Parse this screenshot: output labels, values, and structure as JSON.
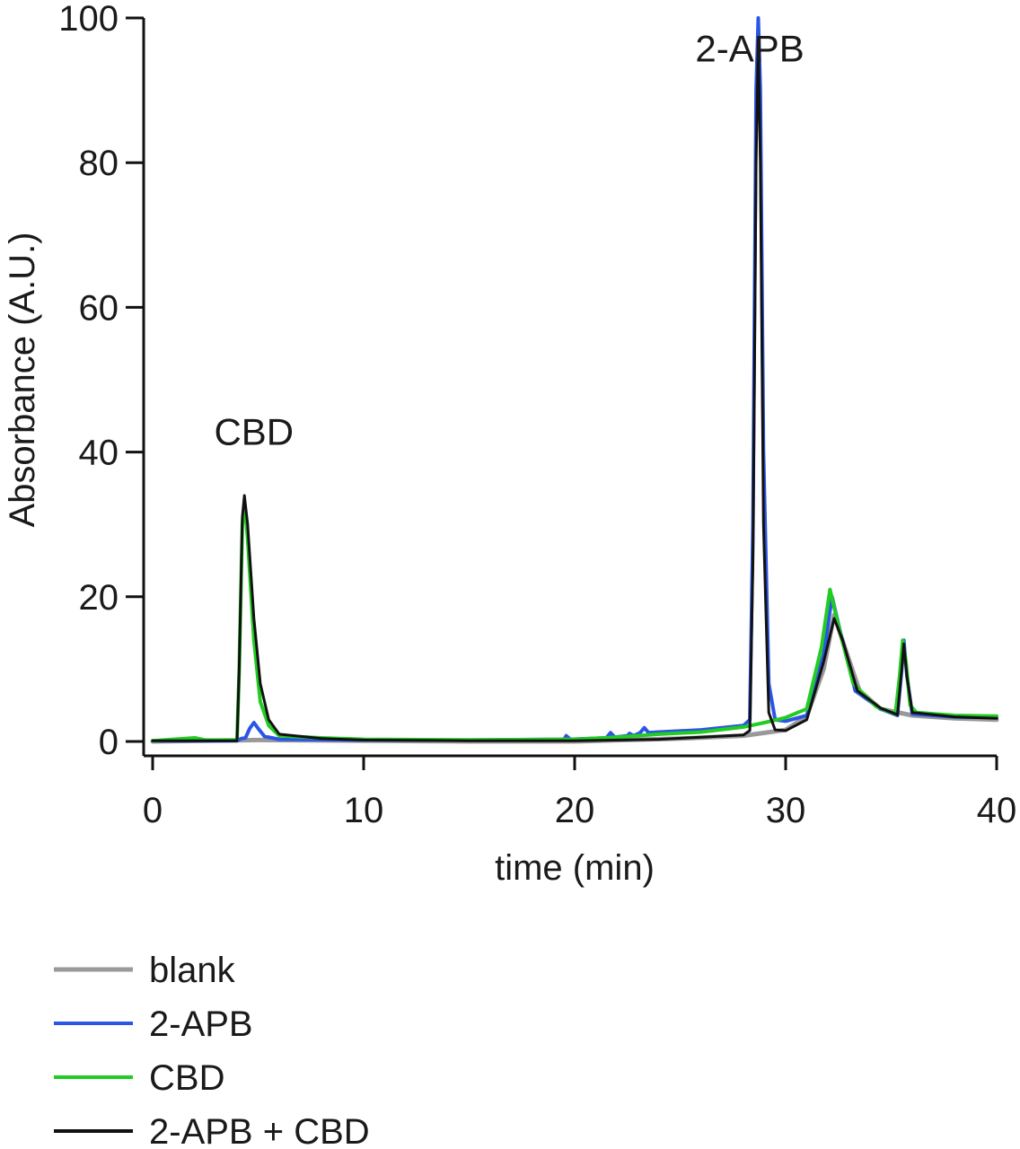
{
  "chart_data": {
    "type": "line",
    "xlabel": "time (min)",
    "ylabel": "Absorbance (A.U.)",
    "xlim": [
      0,
      40
    ],
    "ylim": [
      0,
      100
    ],
    "xticks": [
      "0",
      "10",
      "20",
      "30",
      "40"
    ],
    "yticks": [
      "0",
      "20",
      "40",
      "60",
      "80",
      "100"
    ],
    "grid": false,
    "legend_position": "bottom-left",
    "annotations": [
      {
        "text": "CBD",
        "x": 4.8,
        "y": 41
      },
      {
        "text": "2-APB",
        "x": 28.3,
        "y": 94
      }
    ],
    "series": [
      {
        "name": "blank",
        "color": "#999999",
        "points": [
          [
            0,
            0
          ],
          [
            5,
            0.2
          ],
          [
            10,
            0.1
          ],
          [
            15,
            0
          ],
          [
            20,
            0
          ],
          [
            25,
            0.4
          ],
          [
            28,
            0.8
          ],
          [
            30,
            1.6
          ],
          [
            31,
            3.5
          ],
          [
            31.8,
            10
          ],
          [
            32.3,
            17.5
          ],
          [
            32.8,
            13
          ],
          [
            33.5,
            7
          ],
          [
            34.5,
            4.5
          ],
          [
            36,
            3.6
          ],
          [
            38,
            3.2
          ],
          [
            40,
            3.0
          ]
        ]
      },
      {
        "name": "2-APB",
        "color": "#2a55e5",
        "points": [
          [
            0,
            0.1
          ],
          [
            4,
            0.1
          ],
          [
            4.2,
            0.4
          ],
          [
            4.4,
            0.5
          ],
          [
            4.6,
            1.8
          ],
          [
            4.8,
            2.6
          ],
          [
            5.0,
            1.8
          ],
          [
            5.3,
            0.7
          ],
          [
            6,
            0.3
          ],
          [
            10,
            0.2
          ],
          [
            15,
            0.2
          ],
          [
            19.5,
            0.3
          ],
          [
            19.6,
            0.8
          ],
          [
            19.8,
            0.3
          ],
          [
            21.5,
            0.5
          ],
          [
            21.7,
            1.2
          ],
          [
            21.9,
            0.6
          ],
          [
            22.5,
            0.8
          ],
          [
            22.6,
            1.1
          ],
          [
            22.8,
            0.8
          ],
          [
            23.1,
            1.2
          ],
          [
            23.3,
            1.9
          ],
          [
            23.5,
            1.2
          ],
          [
            24,
            1.3
          ],
          [
            26,
            1.6
          ],
          [
            28,
            2.2
          ],
          [
            28.3,
            3
          ],
          [
            28.45,
            30
          ],
          [
            28.6,
            90
          ],
          [
            28.7,
            100
          ],
          [
            28.8,
            90
          ],
          [
            28.95,
            40
          ],
          [
            29.2,
            8
          ],
          [
            29.5,
            3
          ],
          [
            30,
            2.8
          ],
          [
            31,
            3.6
          ],
          [
            31.8,
            12
          ],
          [
            32.2,
            20
          ],
          [
            32.6,
            15
          ],
          [
            33.3,
            7
          ],
          [
            34.5,
            4.5
          ],
          [
            35.3,
            3.6
          ],
          [
            35.5,
            10
          ],
          [
            35.6,
            14
          ],
          [
            35.75,
            9
          ],
          [
            36,
            3.8
          ],
          [
            38,
            3.4
          ],
          [
            40,
            3.3
          ]
        ]
      },
      {
        "name": "CBD",
        "color": "#22cc22",
        "points": [
          [
            0,
            0.1
          ],
          [
            2,
            0.5
          ],
          [
            2.5,
            0.2
          ],
          [
            4,
            0.2
          ],
          [
            4.1,
            10
          ],
          [
            4.25,
            30
          ],
          [
            4.35,
            33
          ],
          [
            4.5,
            28
          ],
          [
            4.8,
            14
          ],
          [
            5.1,
            5.5
          ],
          [
            5.5,
            2.2
          ],
          [
            6,
            0.8
          ],
          [
            8,
            0.5
          ],
          [
            10,
            0.3
          ],
          [
            15,
            0.2
          ],
          [
            20,
            0.3
          ],
          [
            22,
            0.6
          ],
          [
            24,
            1
          ],
          [
            26,
            1.3
          ],
          [
            28,
            2
          ],
          [
            29,
            2.6
          ],
          [
            30,
            3.3
          ],
          [
            31,
            4.5
          ],
          [
            31.7,
            13
          ],
          [
            32.1,
            21
          ],
          [
            32.5,
            16
          ],
          [
            33.2,
            8
          ],
          [
            34.3,
            4.8
          ],
          [
            35.2,
            3.8
          ],
          [
            35.4,
            9
          ],
          [
            35.55,
            14
          ],
          [
            35.7,
            11
          ],
          [
            35.9,
            5
          ],
          [
            36.2,
            4
          ],
          [
            38,
            3.6
          ],
          [
            40,
            3.5
          ]
        ]
      },
      {
        "name": "2-APB + CBD",
        "color": "#111111",
        "points": [
          [
            0,
            0.1
          ],
          [
            4,
            0.1
          ],
          [
            4.1,
            10
          ],
          [
            4.25,
            31
          ],
          [
            4.35,
            34
          ],
          [
            4.5,
            30
          ],
          [
            4.8,
            17
          ],
          [
            5.1,
            8
          ],
          [
            5.5,
            3
          ],
          [
            6,
            1
          ],
          [
            8,
            0.4
          ],
          [
            10,
            0.2
          ],
          [
            15,
            0.1
          ],
          [
            20,
            0.1
          ],
          [
            24,
            0.3
          ],
          [
            26,
            0.6
          ],
          [
            28,
            0.9
          ],
          [
            28.3,
            1.5
          ],
          [
            28.45,
            25
          ],
          [
            28.6,
            80
          ],
          [
            28.7,
            97
          ],
          [
            28.8,
            80
          ],
          [
            28.95,
            30
          ],
          [
            29.2,
            4
          ],
          [
            29.5,
            1.6
          ],
          [
            30,
            1.5
          ],
          [
            31,
            3
          ],
          [
            31.8,
            11
          ],
          [
            32.3,
            17
          ],
          [
            32.7,
            14
          ],
          [
            33.4,
            7
          ],
          [
            34.5,
            4.6
          ],
          [
            35.3,
            3.7
          ],
          [
            35.5,
            10
          ],
          [
            35.6,
            13.5
          ],
          [
            35.75,
            9
          ],
          [
            36,
            4
          ],
          [
            38,
            3.4
          ],
          [
            40,
            3.2
          ]
        ]
      }
    ]
  }
}
